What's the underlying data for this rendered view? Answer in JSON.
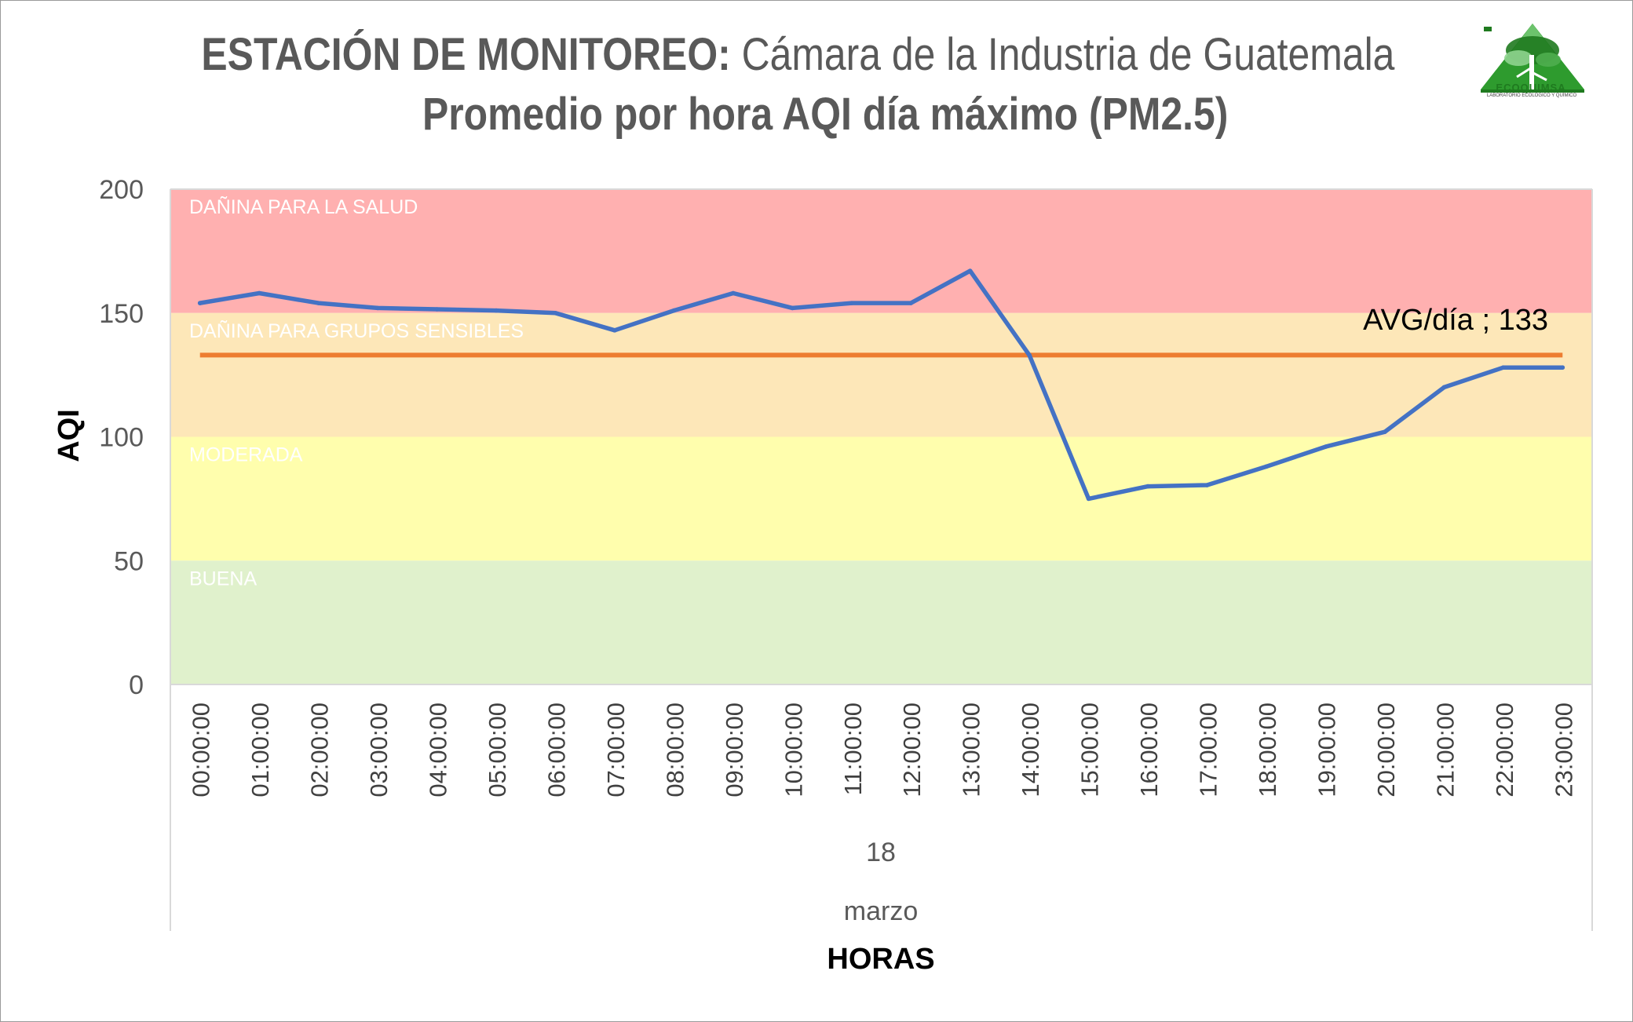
{
  "title": {
    "bold_part": "ESTACIÓN DE MONITOREO:",
    "regular_part": "Cámara de la Industria de Guatemala",
    "subtitle": "Promedio por hora AQI día máximo (PM2.5)"
  },
  "logo": {
    "name": "ECOQUIMSA",
    "tagline": "LABORATORIO ECOLÓGICO Y QUÍMICO",
    "icon": "tree-mountain-logo"
  },
  "chart_data": {
    "type": "line",
    "title": "Promedio por hora AQI día máximo (PM2.5)",
    "xlabel": "HORAS",
    "ylabel": "AQI",
    "ylim": [
      0,
      200
    ],
    "yticks": [
      0,
      50,
      100,
      150,
      200
    ],
    "x_group_labels": [
      "18",
      "marzo"
    ],
    "categories": [
      "00:00:00",
      "01:00:00",
      "02:00:00",
      "03:00:00",
      "04:00:00",
      "05:00:00",
      "06:00:00",
      "07:00:00",
      "08:00:00",
      "09:00:00",
      "10:00:00",
      "11:00:00",
      "12:00:00",
      "13:00:00",
      "14:00:00",
      "15:00:00",
      "16:00:00",
      "17:00:00",
      "18:00:00",
      "19:00:00",
      "20:00:00",
      "21:00:00",
      "22:00:00",
      "23:00:00"
    ],
    "series": [
      {
        "color": "#4472c4",
        "values": [
          154,
          158,
          154,
          152,
          151.5,
          151,
          150,
          143,
          151,
          158,
          152,
          154,
          154,
          167,
          133,
          75,
          80,
          80.5,
          88,
          96,
          102,
          120,
          128,
          128
        ]
      },
      {
        "name": "AVG/día",
        "color": "#ed7d31",
        "constant": 133,
        "label": "AVG/día ; 133"
      }
    ],
    "bands": [
      {
        "label": "DAÑINA PARA LA SALUD",
        "from": 150,
        "to": 200,
        "color": "#ffb0b0"
      },
      {
        "label": "DAÑINA PARA  GRUPOS SENSIBLES",
        "from": 100,
        "to": 150,
        "color": "#fde7b8"
      },
      {
        "label": "MODERADA",
        "from": 50,
        "to": 100,
        "color": "#fffead"
      },
      {
        "label": "BUENA",
        "from": 0,
        "to": 50,
        "color": "#e0f1cc"
      }
    ],
    "grid": false,
    "legend": "none"
  }
}
